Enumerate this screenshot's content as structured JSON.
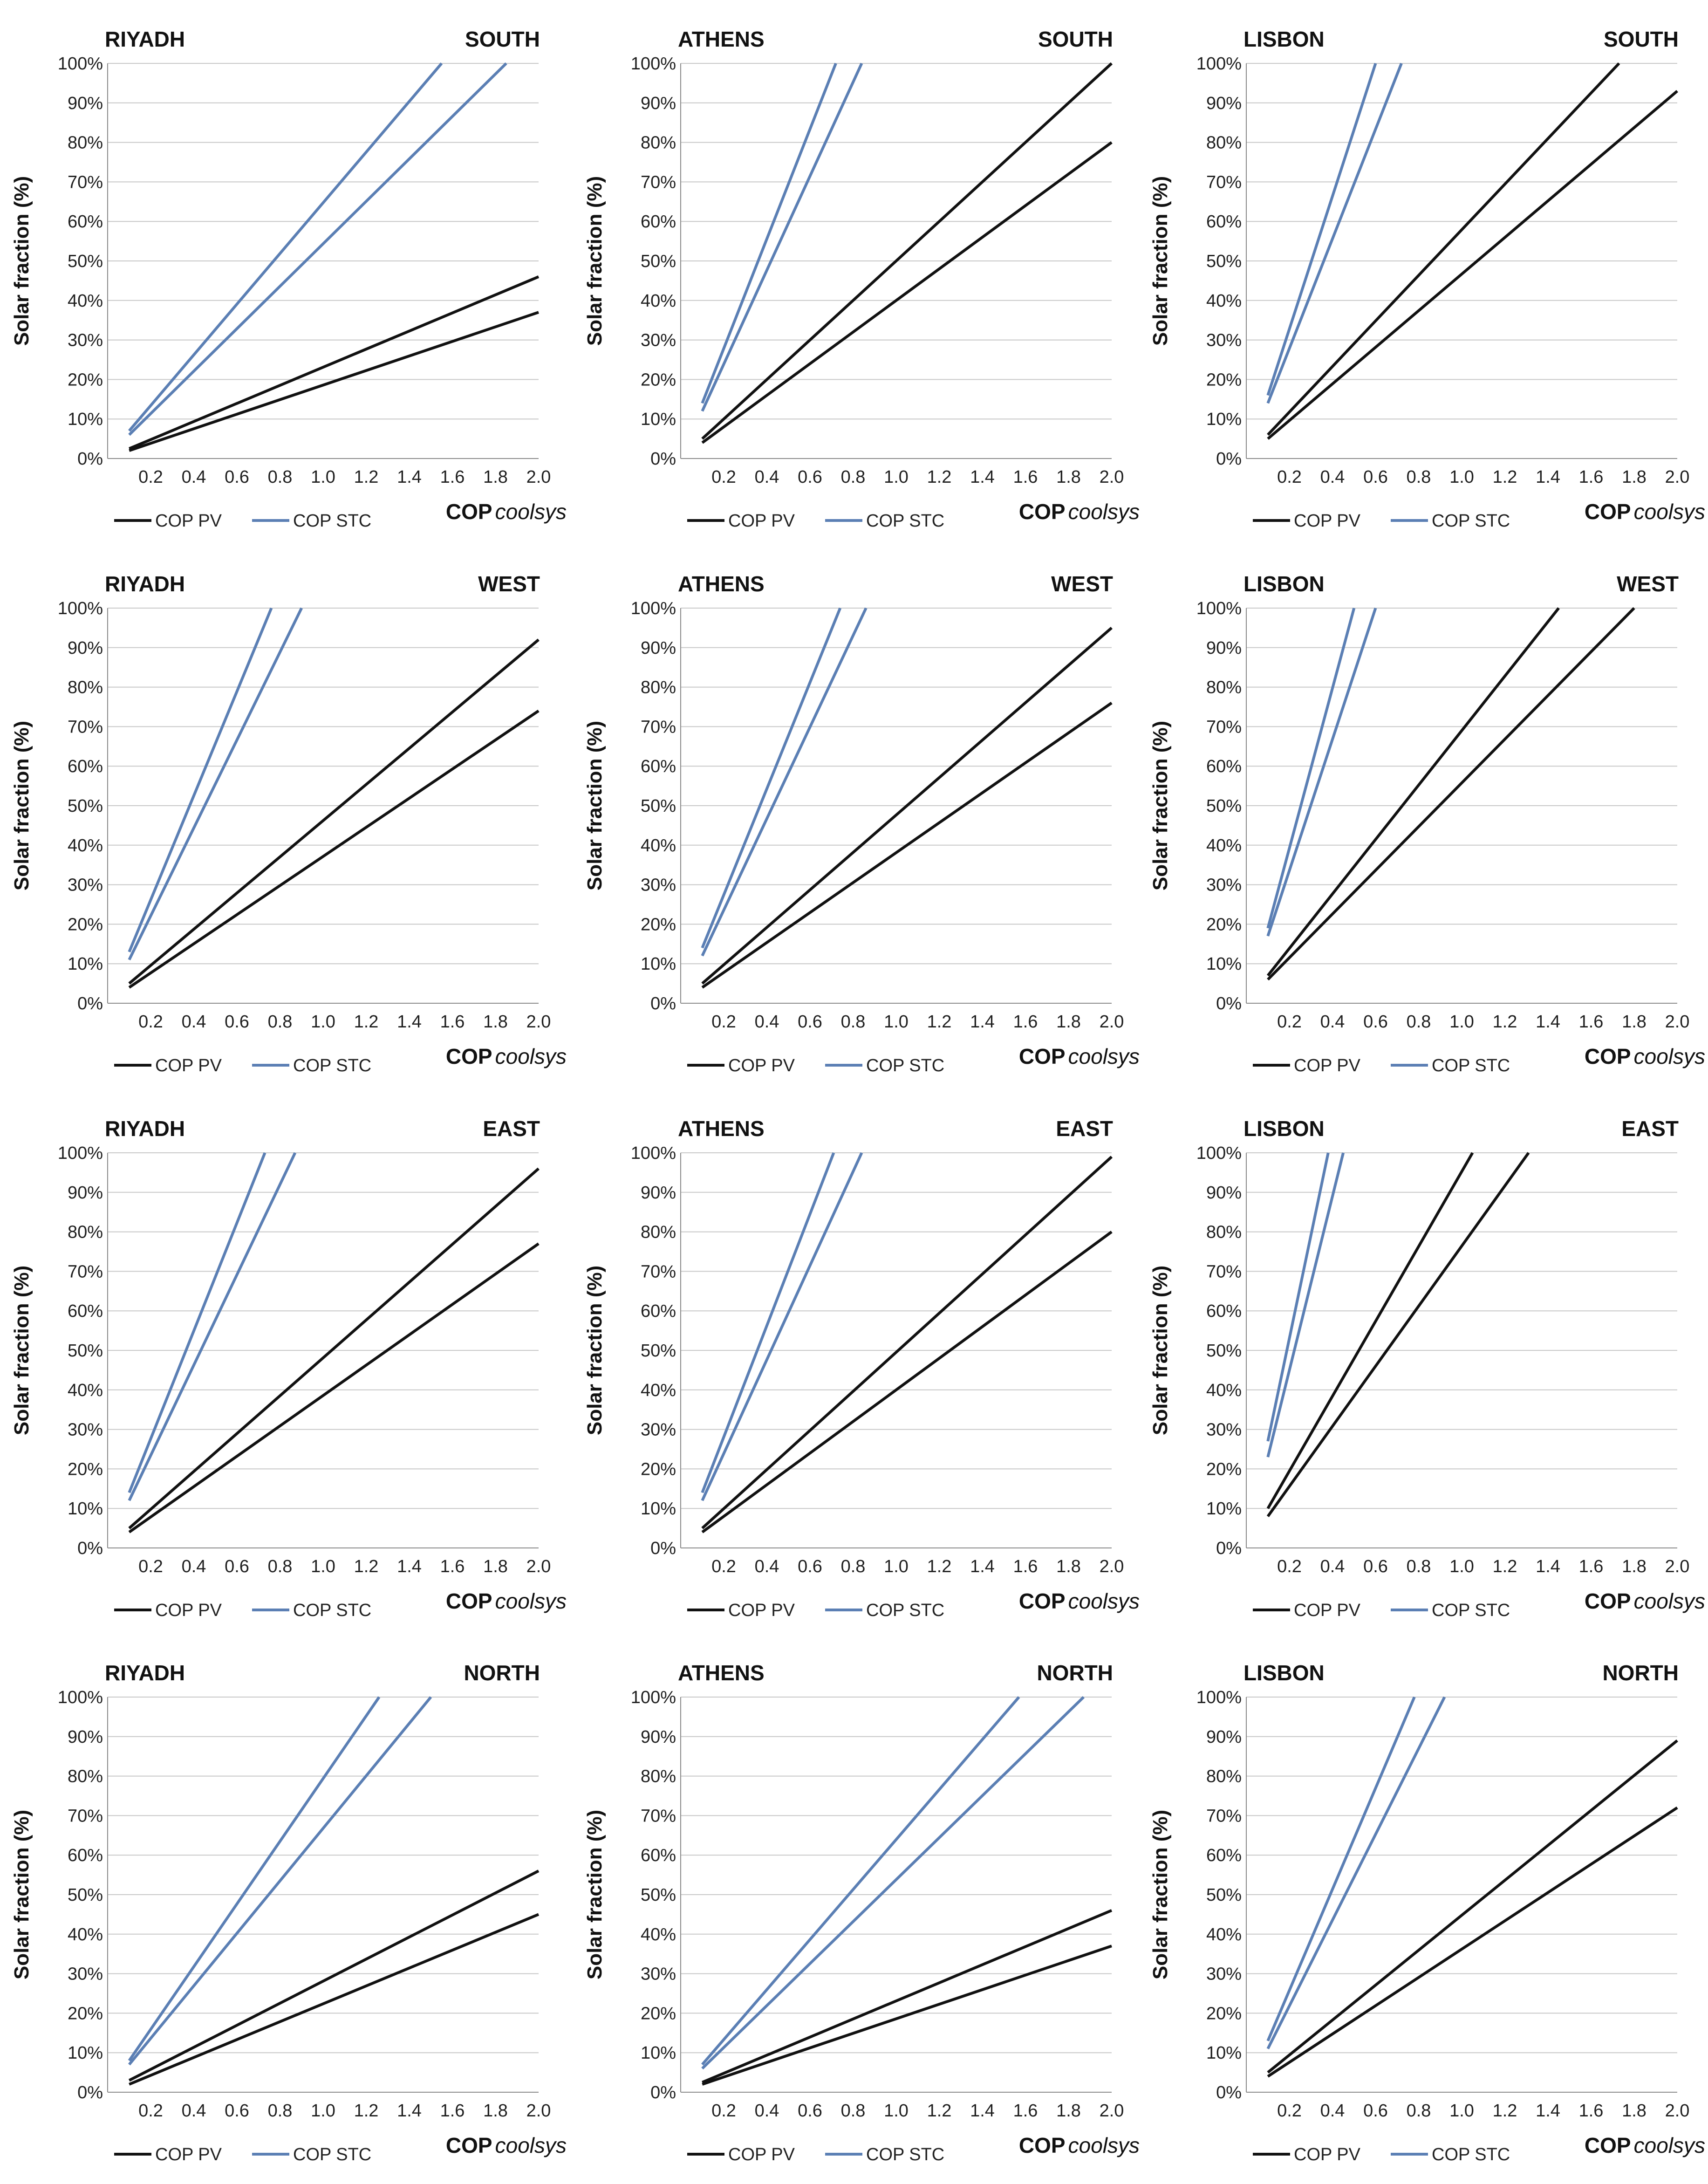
{
  "colors": {
    "pv": "#111111",
    "stc": "#5b7fb4",
    "grid": "#c8c8c8",
    "axis": "#8a8a8a"
  },
  "legend": {
    "pv": "COP PV",
    "stc": "COP STC"
  },
  "chart_data": [
    {
      "type": "line",
      "title": "RIYADH",
      "orientation": "SOUTH",
      "ylabel": "Solar fraction (%)",
      "xlabel_main": "COP",
      "xlabel_italic": "coolsys",
      "x_ticks": [
        "0.2",
        "0.4",
        "0.6",
        "0.8",
        "1.0",
        "1.2",
        "1.4",
        "1.6",
        "1.8",
        "2.0"
      ],
      "y_ticks": [
        "0%",
        "10%",
        "20%",
        "30%",
        "40%",
        "50%",
        "60%",
        "70%",
        "80%",
        "90%",
        "100%"
      ],
      "xlim": [
        0.0,
        2.0
      ],
      "ylim": [
        0,
        100
      ],
      "series": [
        {
          "name": "COP PV",
          "kind": "pv",
          "x": [
            0.1,
            2.0
          ],
          "y": [
            2.5,
            46
          ]
        },
        {
          "name": "COP PV",
          "kind": "pv",
          "x": [
            0.1,
            2.0
          ],
          "y": [
            2.0,
            37
          ]
        },
        {
          "name": "COP STC",
          "kind": "stc",
          "x": [
            0.1,
            1.55
          ],
          "y": [
            7,
            100
          ]
        },
        {
          "name": "COP STC",
          "kind": "stc",
          "x": [
            0.1,
            1.85
          ],
          "y": [
            6,
            100
          ]
        }
      ]
    },
    {
      "type": "line",
      "title": "ATHENS",
      "orientation": "SOUTH",
      "ylabel": "Solar fraction (%)",
      "xlabel_main": "COP",
      "xlabel_italic": "coolsys",
      "x_ticks": [
        "0.2",
        "0.4",
        "0.6",
        "0.8",
        "1.0",
        "1.2",
        "1.4",
        "1.6",
        "1.8",
        "2.0"
      ],
      "y_ticks": [
        "0%",
        "10%",
        "20%",
        "30%",
        "40%",
        "50%",
        "60%",
        "70%",
        "80%",
        "90%",
        "100%"
      ],
      "xlim": [
        0.0,
        2.0
      ],
      "ylim": [
        0,
        100
      ],
      "series": [
        {
          "name": "COP PV",
          "kind": "pv",
          "x": [
            0.1,
            2.0
          ],
          "y": [
            5,
            100
          ]
        },
        {
          "name": "COP PV",
          "kind": "pv",
          "x": [
            0.1,
            2.0
          ],
          "y": [
            4,
            80
          ]
        },
        {
          "name": "COP STC",
          "kind": "stc",
          "x": [
            0.1,
            0.72
          ],
          "y": [
            14,
            100
          ]
        },
        {
          "name": "COP STC",
          "kind": "stc",
          "x": [
            0.1,
            0.84
          ],
          "y": [
            12,
            100
          ]
        }
      ]
    },
    {
      "type": "line",
      "title": "LISBON",
      "orientation": "SOUTH",
      "ylabel": "Solar fraction (%)",
      "xlabel_main": "COP",
      "xlabel_italic": "coolsys",
      "x_ticks": [
        "0.2",
        "0.4",
        "0.6",
        "0.8",
        "1.0",
        "1.2",
        "1.4",
        "1.6",
        "1.8",
        "2.0"
      ],
      "y_ticks": [
        "0%",
        "10%",
        "20%",
        "30%",
        "40%",
        "50%",
        "60%",
        "70%",
        "80%",
        "90%",
        "100%"
      ],
      "xlim": [
        0.0,
        2.0
      ],
      "ylim": [
        0,
        100
      ],
      "series": [
        {
          "name": "COP PV",
          "kind": "pv",
          "x": [
            0.1,
            1.73
          ],
          "y": [
            6,
            100
          ]
        },
        {
          "name": "COP PV",
          "kind": "pv",
          "x": [
            0.1,
            2.0
          ],
          "y": [
            5,
            93
          ]
        },
        {
          "name": "COP STC",
          "kind": "stc",
          "x": [
            0.1,
            0.6
          ],
          "y": [
            16,
            100
          ]
        },
        {
          "name": "COP STC",
          "kind": "stc",
          "x": [
            0.1,
            0.72
          ],
          "y": [
            14,
            100
          ]
        }
      ]
    },
    {
      "type": "line",
      "title": "RIYADH",
      "orientation": "WEST",
      "ylabel": "Solar fraction (%)",
      "xlabel_main": "COP",
      "xlabel_italic": "coolsys",
      "x_ticks": [
        "0.2",
        "0.4",
        "0.6",
        "0.8",
        "1.0",
        "1.2",
        "1.4",
        "1.6",
        "1.8",
        "2.0"
      ],
      "y_ticks": [
        "0%",
        "10%",
        "20%",
        "30%",
        "40%",
        "50%",
        "60%",
        "70%",
        "80%",
        "90%",
        "100%"
      ],
      "xlim": [
        0.0,
        2.0
      ],
      "ylim": [
        0,
        100
      ],
      "series": [
        {
          "name": "COP PV",
          "kind": "pv",
          "x": [
            0.1,
            2.0
          ],
          "y": [
            5,
            92
          ]
        },
        {
          "name": "COP PV",
          "kind": "pv",
          "x": [
            0.1,
            2.0
          ],
          "y": [
            4,
            74
          ]
        },
        {
          "name": "COP STC",
          "kind": "stc",
          "x": [
            0.1,
            0.76
          ],
          "y": [
            13,
            100
          ]
        },
        {
          "name": "COP STC",
          "kind": "stc",
          "x": [
            0.1,
            0.9
          ],
          "y": [
            11,
            100
          ]
        }
      ]
    },
    {
      "type": "line",
      "title": "ATHENS",
      "orientation": "WEST",
      "ylabel": "Solar fraction (%)",
      "xlabel_main": "COP",
      "xlabel_italic": "coolsys",
      "x_ticks": [
        "0.2",
        "0.4",
        "0.6",
        "0.8",
        "1.0",
        "1.2",
        "1.4",
        "1.6",
        "1.8",
        "2.0"
      ],
      "y_ticks": [
        "0%",
        "10%",
        "20%",
        "30%",
        "40%",
        "50%",
        "60%",
        "70%",
        "80%",
        "90%",
        "100%"
      ],
      "xlim": [
        0.0,
        2.0
      ],
      "ylim": [
        0,
        100
      ],
      "series": [
        {
          "name": "COP PV",
          "kind": "pv",
          "x": [
            0.1,
            2.0
          ],
          "y": [
            5,
            95
          ]
        },
        {
          "name": "COP PV",
          "kind": "pv",
          "x": [
            0.1,
            2.0
          ],
          "y": [
            4,
            76
          ]
        },
        {
          "name": "COP STC",
          "kind": "stc",
          "x": [
            0.1,
            0.74
          ],
          "y": [
            14,
            100
          ]
        },
        {
          "name": "COP STC",
          "kind": "stc",
          "x": [
            0.1,
            0.86
          ],
          "y": [
            12,
            100
          ]
        }
      ]
    },
    {
      "type": "line",
      "title": "LISBON",
      "orientation": "WEST",
      "ylabel": "Solar fraction (%)",
      "xlabel_main": "COP",
      "xlabel_italic": "coolsys",
      "x_ticks": [
        "0.2",
        "0.4",
        "0.6",
        "0.8",
        "1.0",
        "1.2",
        "1.4",
        "1.6",
        "1.8",
        "2.0"
      ],
      "y_ticks": [
        "0%",
        "10%",
        "20%",
        "30%",
        "40%",
        "50%",
        "60%",
        "70%",
        "80%",
        "90%",
        "100%"
      ],
      "xlim": [
        0.0,
        2.0
      ],
      "ylim": [
        0,
        100
      ],
      "series": [
        {
          "name": "COP PV",
          "kind": "pv",
          "x": [
            0.1,
            1.45
          ],
          "y": [
            7,
            100
          ]
        },
        {
          "name": "COP PV",
          "kind": "pv",
          "x": [
            0.1,
            1.8
          ],
          "y": [
            6,
            100
          ]
        },
        {
          "name": "COP STC",
          "kind": "stc",
          "x": [
            0.1,
            0.5
          ],
          "y": [
            19,
            100
          ]
        },
        {
          "name": "COP STC",
          "kind": "stc",
          "x": [
            0.1,
            0.6
          ],
          "y": [
            17,
            100
          ]
        }
      ]
    },
    {
      "type": "line",
      "title": "RIYADH",
      "orientation": "EAST",
      "ylabel": "Solar fraction (%)",
      "xlabel_main": "COP",
      "xlabel_italic": "coolsys",
      "x_ticks": [
        "0.2",
        "0.4",
        "0.6",
        "0.8",
        "1.0",
        "1.2",
        "1.4",
        "1.6",
        "1.8",
        "2.0"
      ],
      "y_ticks": [
        "0%",
        "10%",
        "20%",
        "30%",
        "40%",
        "50%",
        "60%",
        "70%",
        "80%",
        "90%",
        "100%"
      ],
      "xlim": [
        0.0,
        2.0
      ],
      "ylim": [
        0,
        100
      ],
      "series": [
        {
          "name": "COP PV",
          "kind": "pv",
          "x": [
            0.1,
            2.0
          ],
          "y": [
            5,
            96
          ]
        },
        {
          "name": "COP PV",
          "kind": "pv",
          "x": [
            0.1,
            2.0
          ],
          "y": [
            4,
            77
          ]
        },
        {
          "name": "COP STC",
          "kind": "stc",
          "x": [
            0.1,
            0.73
          ],
          "y": [
            14,
            100
          ]
        },
        {
          "name": "COP STC",
          "kind": "stc",
          "x": [
            0.1,
            0.87
          ],
          "y": [
            12,
            100
          ]
        }
      ]
    },
    {
      "type": "line",
      "title": "ATHENS",
      "orientation": "EAST",
      "ylabel": "Solar fraction (%)",
      "xlabel_main": "COP",
      "xlabel_italic": "coolsys",
      "x_ticks": [
        "0.2",
        "0.4",
        "0.6",
        "0.8",
        "1.0",
        "1.2",
        "1.4",
        "1.6",
        "1.8",
        "2.0"
      ],
      "y_ticks": [
        "0%",
        "10%",
        "20%",
        "30%",
        "40%",
        "50%",
        "60%",
        "70%",
        "80%",
        "90%",
        "100%"
      ],
      "xlim": [
        0.0,
        2.0
      ],
      "ylim": [
        0,
        100
      ],
      "series": [
        {
          "name": "COP PV",
          "kind": "pv",
          "x": [
            0.1,
            2.0
          ],
          "y": [
            5,
            99
          ]
        },
        {
          "name": "COP PV",
          "kind": "pv",
          "x": [
            0.1,
            2.0
          ],
          "y": [
            4,
            80
          ]
        },
        {
          "name": "COP STC",
          "kind": "stc",
          "x": [
            0.1,
            0.71
          ],
          "y": [
            14,
            100
          ]
        },
        {
          "name": "COP STC",
          "kind": "stc",
          "x": [
            0.1,
            0.84
          ],
          "y": [
            12,
            100
          ]
        }
      ]
    },
    {
      "type": "line",
      "title": "LISBON",
      "orientation": "EAST",
      "ylabel": "Solar fraction (%)",
      "xlabel_main": "COP",
      "xlabel_italic": "coolsys",
      "x_ticks": [
        "0.2",
        "0.4",
        "0.6",
        "0.8",
        "1.0",
        "1.2",
        "1.4",
        "1.6",
        "1.8",
        "2.0"
      ],
      "y_ticks": [
        "0%",
        "10%",
        "20%",
        "30%",
        "40%",
        "50%",
        "60%",
        "70%",
        "80%",
        "90%",
        "100%"
      ],
      "xlim": [
        0.0,
        2.0
      ],
      "ylim": [
        0,
        100
      ],
      "series": [
        {
          "name": "COP PV",
          "kind": "pv",
          "x": [
            0.1,
            1.05
          ],
          "y": [
            10,
            100
          ]
        },
        {
          "name": "COP PV",
          "kind": "pv",
          "x": [
            0.1,
            1.31
          ],
          "y": [
            8,
            100
          ]
        },
        {
          "name": "COP STC",
          "kind": "stc",
          "x": [
            0.1,
            0.38
          ],
          "y": [
            27,
            100
          ]
        },
        {
          "name": "COP STC",
          "kind": "stc",
          "x": [
            0.1,
            0.45
          ],
          "y": [
            23,
            100
          ]
        }
      ]
    },
    {
      "type": "line",
      "title": "RIYADH",
      "orientation": "NORTH",
      "ylabel": "Solar fraction (%)",
      "xlabel_main": "COP",
      "xlabel_italic": "coolsys",
      "x_ticks": [
        "0.2",
        "0.4",
        "0.6",
        "0.8",
        "1.0",
        "1.2",
        "1.4",
        "1.6",
        "1.8",
        "2.0"
      ],
      "y_ticks": [
        "0%",
        "10%",
        "20%",
        "30%",
        "40%",
        "50%",
        "60%",
        "70%",
        "80%",
        "90%",
        "100%"
      ],
      "xlim": [
        0.0,
        2.0
      ],
      "ylim": [
        0,
        100
      ],
      "series": [
        {
          "name": "COP PV",
          "kind": "pv",
          "x": [
            0.1,
            2.0
          ],
          "y": [
            3,
            56
          ]
        },
        {
          "name": "COP PV",
          "kind": "pv",
          "x": [
            0.1,
            2.0
          ],
          "y": [
            2,
            45
          ]
        },
        {
          "name": "COP STC",
          "kind": "stc",
          "x": [
            0.1,
            1.26
          ],
          "y": [
            8,
            100
          ]
        },
        {
          "name": "COP STC",
          "kind": "stc",
          "x": [
            0.1,
            1.5
          ],
          "y": [
            7,
            100
          ]
        }
      ]
    },
    {
      "type": "line",
      "title": "ATHENS",
      "orientation": "NORTH",
      "ylabel": "Solar fraction (%)",
      "xlabel_main": "COP",
      "xlabel_italic": "coolsys",
      "x_ticks": [
        "0.2",
        "0.4",
        "0.6",
        "0.8",
        "1.0",
        "1.2",
        "1.4",
        "1.6",
        "1.8",
        "2.0"
      ],
      "y_ticks": [
        "0%",
        "10%",
        "20%",
        "30%",
        "40%",
        "50%",
        "60%",
        "70%",
        "80%",
        "90%",
        "100%"
      ],
      "xlim": [
        0.0,
        2.0
      ],
      "ylim": [
        0,
        100
      ],
      "series": [
        {
          "name": "COP PV",
          "kind": "pv",
          "x": [
            0.1,
            2.0
          ],
          "y": [
            2.5,
            46
          ]
        },
        {
          "name": "COP PV",
          "kind": "pv",
          "x": [
            0.1,
            2.0
          ],
          "y": [
            2.0,
            37
          ]
        },
        {
          "name": "COP STC",
          "kind": "stc",
          "x": [
            0.1,
            1.57
          ],
          "y": [
            7,
            100
          ]
        },
        {
          "name": "COP STC",
          "kind": "stc",
          "x": [
            0.1,
            1.87
          ],
          "y": [
            6,
            100
          ]
        }
      ]
    },
    {
      "type": "line",
      "title": "LISBON",
      "orientation": "NORTH",
      "ylabel": "Solar fraction (%)",
      "xlabel_main": "COP",
      "xlabel_italic": "coolsys",
      "x_ticks": [
        "0.2",
        "0.4",
        "0.6",
        "0.8",
        "1.0",
        "1.2",
        "1.4",
        "1.6",
        "1.8",
        "2.0"
      ],
      "y_ticks": [
        "0%",
        "10%",
        "20%",
        "30%",
        "40%",
        "50%",
        "60%",
        "70%",
        "80%",
        "90%",
        "100%"
      ],
      "xlim": [
        0.0,
        2.0
      ],
      "ylim": [
        0,
        100
      ],
      "series": [
        {
          "name": "COP PV",
          "kind": "pv",
          "x": [
            0.1,
            2.0
          ],
          "y": [
            5,
            89
          ]
        },
        {
          "name": "COP PV",
          "kind": "pv",
          "x": [
            0.1,
            2.0
          ],
          "y": [
            4,
            72
          ]
        },
        {
          "name": "COP STC",
          "kind": "stc",
          "x": [
            0.1,
            0.78
          ],
          "y": [
            13,
            100
          ]
        },
        {
          "name": "COP STC",
          "kind": "stc",
          "x": [
            0.1,
            0.92
          ],
          "y": [
            11,
            100
          ]
        }
      ]
    }
  ]
}
